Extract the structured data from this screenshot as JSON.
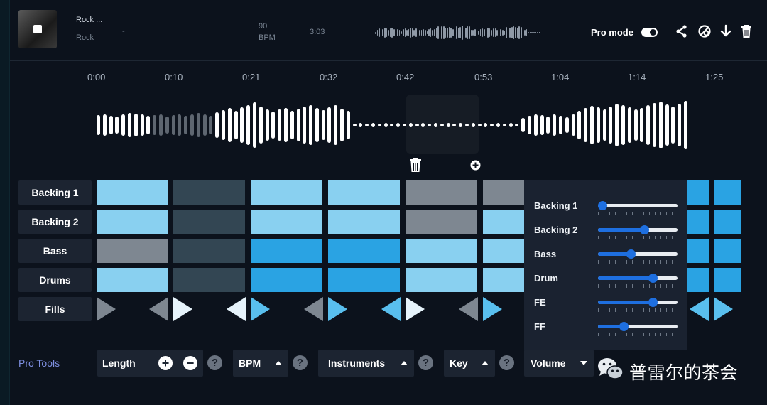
{
  "song": {
    "title": "Rock ...",
    "genre": "Rock",
    "dash": "-",
    "bpm_value": "90",
    "bpm_unit": "BPM",
    "duration": "3:03"
  },
  "header": {
    "pro_mode_label": "Pro mode",
    "pro_mode_on": true,
    "icons": [
      "share-icon",
      "link-icon",
      "download-icon",
      "trash-icon"
    ]
  },
  "timeline": [
    "0:00",
    "0:10",
    "0:21",
    "0:32",
    "0:42",
    "0:53",
    "1:04",
    "1:14",
    "1:25"
  ],
  "tracks": [
    {
      "label": "Backing 1",
      "cells": [
        "light",
        "dark",
        "light",
        "light",
        "gray",
        "gray"
      ],
      "tail": [
        "mid",
        "mid"
      ]
    },
    {
      "label": "Backing 2",
      "cells": [
        "light",
        "dark",
        "light",
        "light",
        "gray",
        "light"
      ],
      "tail": [
        "mid",
        "mid"
      ]
    },
    {
      "label": "Bass",
      "cells": [
        "gray",
        "dark",
        "mid",
        "mid",
        "light",
        "light"
      ],
      "tail": [
        "mid",
        "mid"
      ]
    },
    {
      "label": "Drums",
      "cells": [
        "light",
        "dark",
        "mid",
        "mid",
        "light",
        "light"
      ],
      "tail": [
        "mid",
        "mid"
      ]
    }
  ],
  "fills_label": "Fills",
  "cell_colors": {
    "light": "#89d0f0",
    "dark": "#334653",
    "mid": "#2aa3e3",
    "gray": "#7e8791",
    "tri_gray": "#7e8791",
    "tri_white": "#e6f3fb",
    "tri_blue": "#59bfee"
  },
  "volume_panel": [
    {
      "label": "Backing 1",
      "level": 0.05
    },
    {
      "label": "Backing 2",
      "level": 0.58
    },
    {
      "label": "Bass",
      "level": 0.41
    },
    {
      "label": "Drum",
      "level": 0.69
    },
    {
      "label": "FE",
      "level": 0.69
    },
    {
      "label": "FF",
      "level": 0.32
    }
  ],
  "pro_tools": {
    "label": "Pro Tools",
    "length_label": "Length",
    "bpm_label": "BPM",
    "instruments_label": "Instruments",
    "key_label": "Key",
    "volume_label": "Volume",
    "help_glyph": "?"
  },
  "watermark": "普雷尔的茶会",
  "accent_color": "#1e6fe0"
}
